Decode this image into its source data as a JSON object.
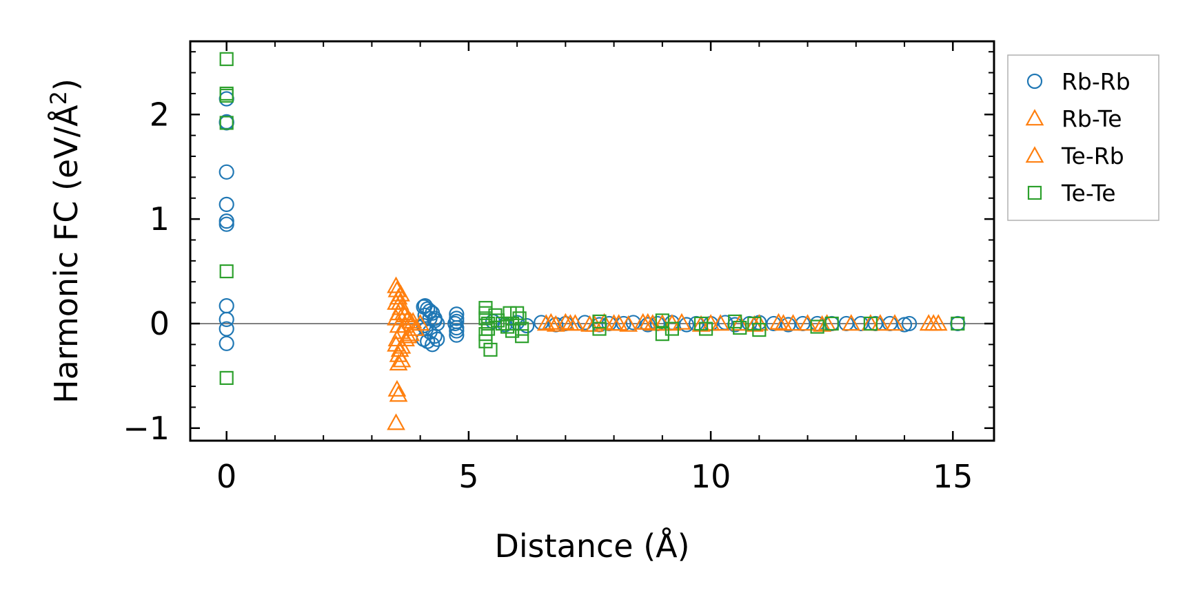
{
  "chart_data": {
    "type": "scatter",
    "xlabel": "Distance (Å)",
    "ylabel": "Harmonic FC (eV/Å²)",
    "ylabel_base": "Harmonic FC (eV/Å",
    "ylabel_sup": "2",
    "ylabel_close": ")",
    "xlim": [
      -0.75,
      15.85
    ],
    "ylim": [
      -1.12,
      2.7
    ],
    "xticks": [
      0,
      5,
      10,
      15
    ],
    "xtick_labels": [
      "0",
      "5",
      "10",
      "15"
    ],
    "yticks": [
      -1,
      0,
      1,
      2
    ],
    "ytick_labels": [
      "−1",
      "0",
      "1",
      "2"
    ],
    "zero_line": true,
    "grid": false,
    "legend_position": "outside-right-top",
    "series": [
      {
        "name": "Rb-Rb",
        "marker": "circle",
        "color": "#1f77b4",
        "x": [
          0,
          0,
          0,
          0,
          0,
          0,
          0,
          0,
          0,
          0,
          0,
          4.07,
          4.1,
          4.15,
          4.2,
          4.25,
          4.3,
          4.35,
          4.07,
          4.12,
          4.2,
          4.3,
          4.07,
          4.15,
          4.25,
          4.35,
          4.1,
          4.2,
          4.3,
          4.75,
          4.75,
          4.75,
          4.72,
          4.75,
          4.75,
          4.75,
          5.5,
          5.75,
          6.0,
          6.2,
          6.5,
          6.8,
          7.0,
          7.4,
          7.7,
          7.9,
          8.2,
          8.4,
          8.7,
          8.9,
          9.2,
          9.5,
          9.7,
          10.0,
          10.3,
          10.5,
          10.8,
          11.0,
          11.3,
          11.6,
          11.9,
          12.2,
          12.5,
          12.8,
          13.1,
          13.4,
          13.7,
          14.0,
          14.1,
          15.1
        ],
        "y": [
          2.15,
          1.92,
          1.45,
          1.14,
          0.98,
          0.95,
          0.17,
          0.04,
          -0.05,
          -0.19,
          1.93,
          0.16,
          0.17,
          0.14,
          0.12,
          0.1,
          0.05,
          0.0,
          -0.02,
          -0.05,
          -0.08,
          -0.12,
          -0.15,
          -0.17,
          -0.2,
          -0.15,
          0.08,
          0.05,
          0.03,
          0.09,
          0.05,
          0.02,
          0.0,
          -0.04,
          -0.07,
          -0.11,
          0.02,
          -0.01,
          0.01,
          -0.02,
          0.01,
          -0.01,
          0.0,
          0.01,
          -0.01,
          0.0,
          0.0,
          0.01,
          -0.01,
          0.0,
          0.01,
          -0.01,
          0.0,
          0.0,
          0.01,
          -0.01,
          0.0,
          0.01,
          0.0,
          -0.01,
          0.0,
          0.0,
          0.0,
          0.0,
          0.0,
          0.0,
          0.0,
          -0.01,
          0.0,
          0.0
        ]
      },
      {
        "name": "Rb-Te",
        "marker": "triangle",
        "color": "#ff7f0e",
        "x": [
          3.5,
          3.52,
          3.55,
          3.5,
          3.6,
          3.55,
          3.5,
          3.55,
          3.6,
          3.52,
          3.5,
          3.58,
          3.55,
          3.62,
          3.7,
          3.75,
          3.8,
          3.9,
          4.0,
          3.65,
          3.7,
          3.85,
          6.6,
          6.8,
          7.0,
          7.2,
          7.5,
          7.8,
          8.0,
          8.3,
          8.6,
          8.8,
          9.0,
          9.4,
          9.8,
          10.2,
          10.6,
          11.0,
          11.4,
          11.7,
          12.0,
          12.3,
          12.9,
          13.3,
          13.8,
          14.5,
          14.7
        ],
        "y": [
          0.36,
          0.32,
          0.25,
          0.2,
          0.15,
          0.1,
          0.05,
          -0.02,
          -0.08,
          -0.15,
          -0.2,
          -0.25,
          -0.38,
          -0.35,
          -0.02,
          0.05,
          -0.1,
          -0.05,
          0.0,
          0.1,
          -0.15,
          0.02,
          0.0,
          -0.01,
          0.01,
          0.0,
          -0.01,
          0.01,
          0.0,
          -0.01,
          0.01,
          0.0,
          0.0,
          0.01,
          -0.01,
          0.0,
          0.0,
          0.0,
          0.01,
          0.0,
          0.0,
          -0.01,
          0.0,
          0.0,
          0.0,
          0.0,
          0.0
        ]
      },
      {
        "name": "Te-Rb",
        "marker": "triangle",
        "color": "#ff7f0e",
        "x": [
          3.52,
          3.55,
          3.5,
          3.6,
          3.58,
          3.55,
          3.62,
          3.68,
          3.75,
          3.8,
          6.7,
          7.1,
          7.6,
          8.1,
          8.7,
          9.2,
          10.0,
          10.9,
          11.5,
          12.4,
          13.5,
          14.6
        ],
        "y": [
          -0.63,
          -0.68,
          -0.95,
          0.28,
          0.2,
          -0.3,
          -0.22,
          0.08,
          -0.12,
          0.02,
          0.01,
          0.0,
          -0.01,
          0.0,
          0.01,
          0.0,
          0.0,
          -0.01,
          0.0,
          0.0,
          0.0,
          0.0
        ]
      },
      {
        "name": "Te-Te",
        "marker": "square",
        "color": "#2ca02c",
        "x": [
          0,
          0,
          0,
          0,
          0,
          0,
          5.35,
          5.35,
          5.35,
          5.4,
          5.4,
          5.35,
          5.35,
          5.45,
          5.55,
          5.6,
          5.7,
          5.8,
          5.9,
          6.0,
          6.05,
          6.1,
          6.1,
          5.85,
          5.9,
          7.7,
          7.7,
          9.0,
          9.0,
          9.2,
          9.8,
          9.9,
          10.5,
          10.6,
          10.9,
          11.0,
          12.2,
          12.5,
          13.3,
          15.1
        ],
        "y": [
          2.53,
          2.2,
          1.92,
          0.5,
          -0.52,
          2.18,
          0.15,
          0.1,
          0.05,
          0.0,
          -0.05,
          -0.1,
          -0.17,
          -0.25,
          0.08,
          0.03,
          0.0,
          -0.03,
          -0.07,
          0.1,
          0.05,
          -0.05,
          -0.12,
          0.1,
          0.0,
          0.02,
          -0.05,
          0.03,
          -0.1,
          -0.05,
          0.0,
          -0.05,
          0.02,
          -0.04,
          0.0,
          -0.06,
          -0.03,
          0.0,
          0.0,
          0.0
        ]
      }
    ]
  }
}
